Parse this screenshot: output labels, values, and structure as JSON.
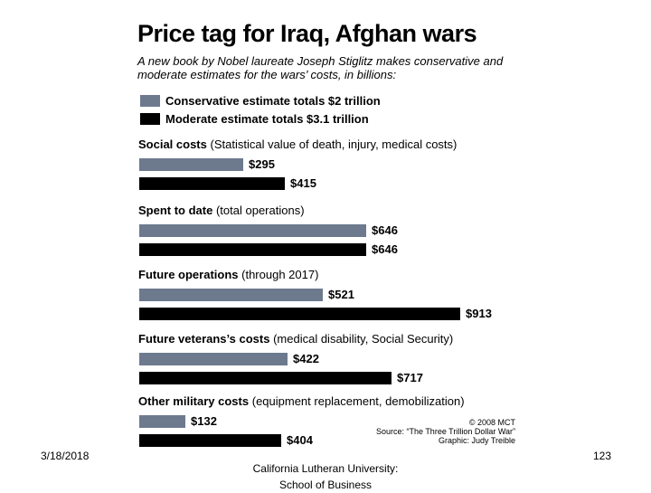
{
  "footer": {
    "date": "3/18/2018",
    "org_line1": "California Lutheran University:",
    "org_line2": "School of Business",
    "page_number": "123"
  },
  "credit": {
    "copyright": "© 2008 MCT",
    "source": "Source: “The Three Trillion Dollar War”",
    "graphic": "Graphic: Judy Treible"
  },
  "colors": {
    "conservative": "#6d7a8e",
    "moderate": "#000000"
  },
  "chart_data": {
    "type": "bar",
    "orientation": "horizontal",
    "title": "Price tag for Iraq, Afghan wars",
    "subtitle": "A new book by Nobel laureate Joseph Stiglitz makes conservative and moderate estimates for the wars’ costs, in billions:",
    "legend": [
      "Conservative estimate totals $2 trillion",
      "Moderate estimate totals $3.1 trillion"
    ],
    "categories": [
      {
        "name": "Social costs",
        "detail": "(Statistical value of death, injury, medical costs)"
      },
      {
        "name": "Spent to date",
        "detail": "(total operations)"
      },
      {
        "name": "Future operations",
        "detail": "(through 2017)"
      },
      {
        "name": "Future veterans’s costs",
        "detail": "(medical disability, Social Security)"
      },
      {
        "name": "Other military costs",
        "detail": "(equipment replacement, demobilization)"
      }
    ],
    "series": [
      {
        "values": [
          295,
          646,
          521,
          422,
          132
        ],
        "labels": [
          "$295",
          "$646",
          "$521",
          "$422",
          "$132"
        ]
      },
      {
        "values": [
          415,
          646,
          913,
          717,
          404
        ],
        "labels": [
          "$415",
          "$646",
          "$913",
          "$717",
          "$404"
        ]
      }
    ],
    "xlim": [
      0,
      913
    ]
  }
}
